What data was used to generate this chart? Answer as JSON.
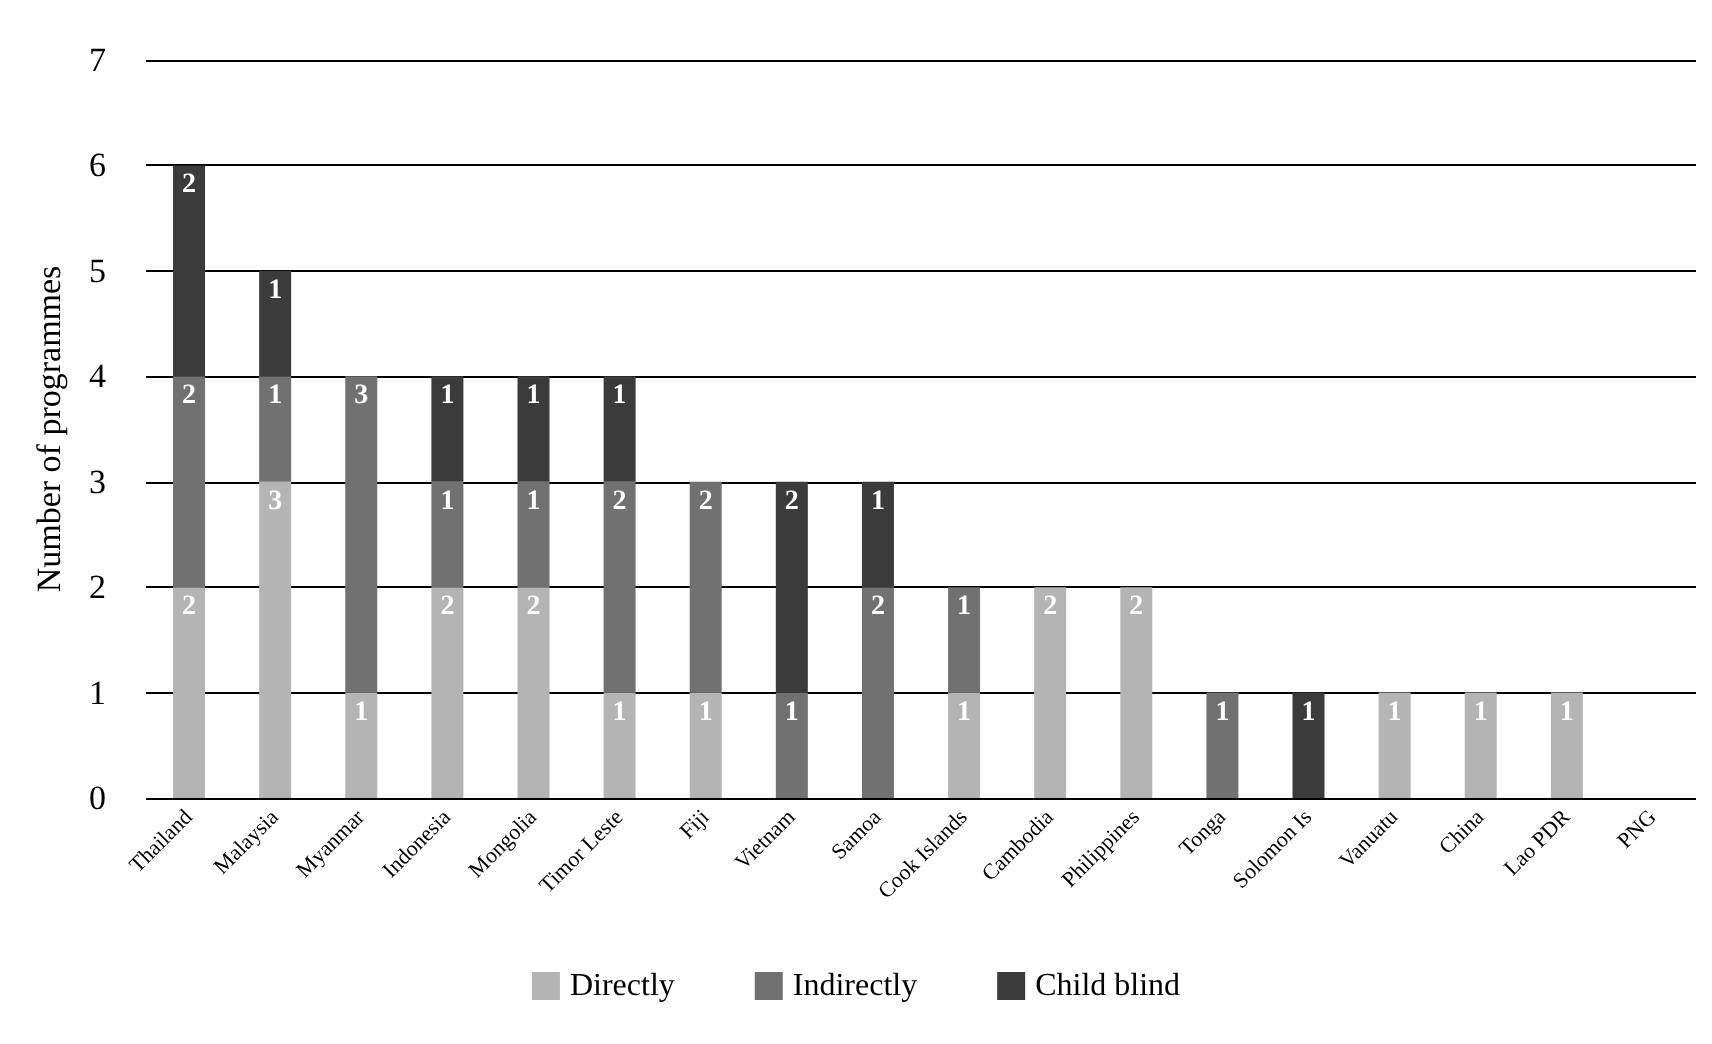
{
  "chart_data": {
    "type": "bar",
    "stacked": true,
    "ylabel": "Number of programmes",
    "categories": [
      "Thailand",
      "Malaysia",
      "Myanmar",
      "Indonesia",
      "Mongolia",
      "Timor Leste",
      "Fiji",
      "Vietnam",
      "Samoa",
      "Cook Islands",
      "Cambodia",
      "Philippines",
      "Tonga",
      "Solomon Is",
      "Vanuatu",
      "China",
      "Lao PDR",
      "PNG"
    ],
    "series": [
      {
        "name": "Directly",
        "color": "#b4b4b4",
        "values": [
          2,
          3,
          1,
          2,
          2,
          1,
          1,
          null,
          null,
          1,
          2,
          2,
          null,
          null,
          1,
          1,
          1,
          null
        ]
      },
      {
        "name": "Indirectly",
        "color": "#717171",
        "values": [
          2,
          1,
          3,
          1,
          1,
          2,
          2,
          1,
          2,
          1,
          null,
          null,
          1,
          null,
          null,
          null,
          null,
          null
        ]
      },
      {
        "name": "Child blind",
        "color": "#3b3b3b",
        "values": [
          2,
          1,
          null,
          1,
          1,
          1,
          null,
          2,
          1,
          null,
          null,
          null,
          null,
          1,
          null,
          null,
          null,
          null
        ]
      }
    ],
    "ylim": [
      0,
      7
    ],
    "yticks": [
      0,
      1,
      2,
      3,
      4,
      5,
      6,
      7
    ],
    "grid": "y",
    "legend": "bottom",
    "data_labels": true
  }
}
